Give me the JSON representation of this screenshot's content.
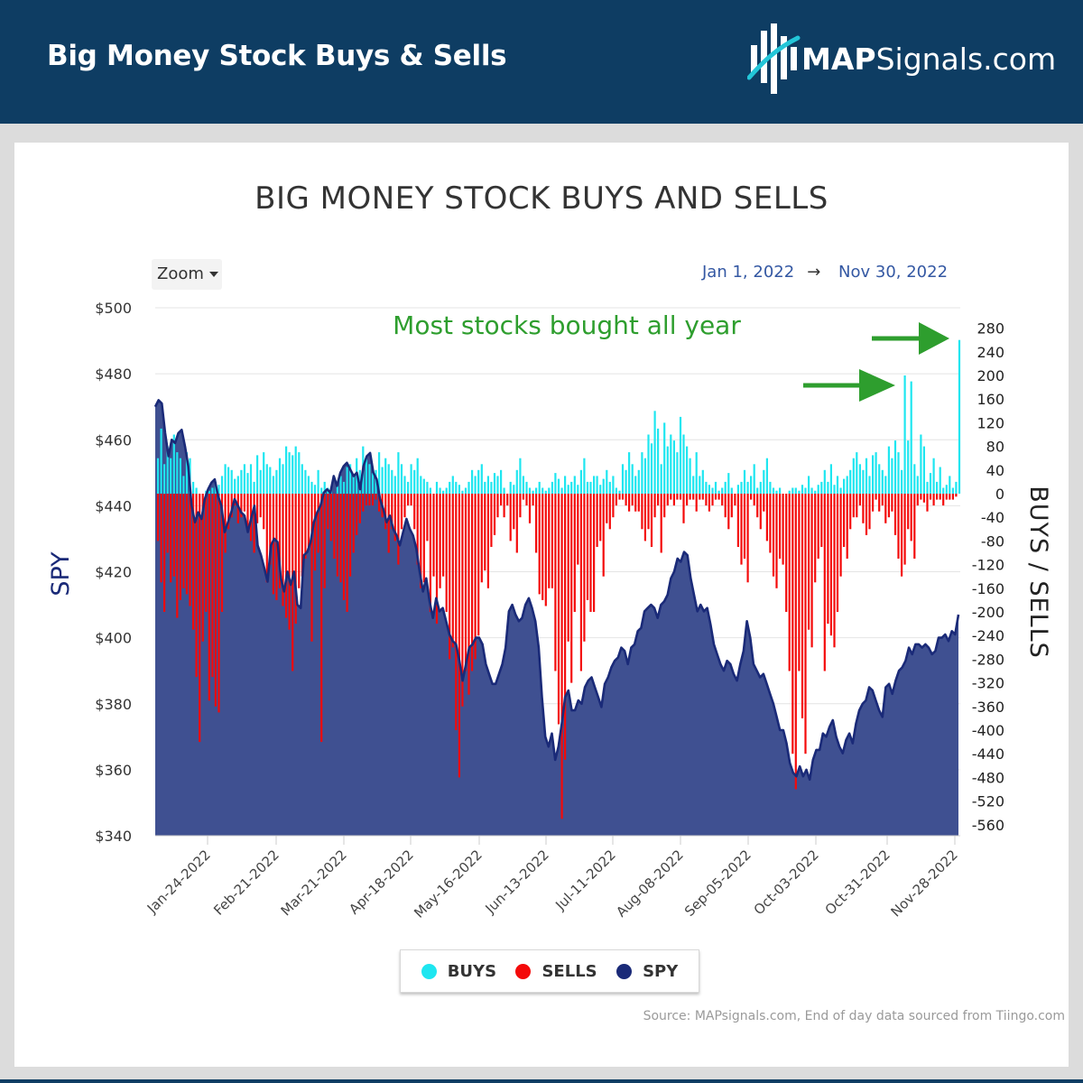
{
  "header": {
    "title": "Big Money Stock Buys & Sells",
    "logo_bold": "MAP",
    "logo_rest": "Signals.com"
  },
  "toolbar": {
    "zoom_label": "Zoom",
    "range_start": "Jan 1, 2022",
    "range_arrow": "→",
    "range_end": "Nov 30, 2022"
  },
  "colors": {
    "header_bg": "#0e3d63",
    "buys": "#1ee6f0",
    "sells": "#f40a0a",
    "spy": "#1a2a78",
    "spy_fill": "#3f5091",
    "annotation": "#2e9e2e"
  },
  "legend": {
    "buys": "BUYS",
    "sells": "SELLS",
    "spy": "SPY"
  },
  "source": "Source: MAPsignals.com, End of day data sourced from Tiingo.com",
  "chart_data": {
    "type": "bar",
    "title": "BIG MONEY STOCK BUYS AND SELLS",
    "annotation": "Most stocks bought all year",
    "y_left": {
      "label": "SPY",
      "range": [
        340,
        500
      ],
      "ticks": [
        "$340",
        "$360",
        "$380",
        "$400",
        "$420",
        "$440",
        "$460",
        "$480",
        "$500"
      ]
    },
    "y_right": {
      "label": "BUYS / SELLS",
      "range": [
        -580,
        290
      ],
      "ticks": [
        "-560",
        "-520",
        "-480",
        "-440",
        "-400",
        "-360",
        "-320",
        "-280",
        "-240",
        "-200",
        "-160",
        "-120",
        "-80",
        "-40",
        "0",
        "40",
        "80",
        "120",
        "160",
        "200",
        "240",
        "280"
      ]
    },
    "x_ticks": [
      "Jan-24-2022",
      "Feb-21-2022",
      "Mar-21-2022",
      "Apr-18-2022",
      "May-16-2022",
      "Jun-13-2022",
      "Jul-11-2022",
      "Aug-08-2022",
      "Sep-05-2022",
      "Oct-03-2022",
      "Oct-31-2022",
      "Nov-28-2022"
    ],
    "x_range": [
      "Jan-03-2022",
      "Nov-30-2022"
    ],
    "grid": true,
    "legend_position": "bottom-center",
    "series": [
      {
        "name": "BUYS",
        "type": "bar",
        "values": [
          60,
          110,
          50,
          80,
          60,
          100,
          70,
          60,
          30,
          70,
          60,
          20,
          10,
          0,
          0,
          5,
          5,
          10,
          20,
          15,
          30,
          50,
          45,
          40,
          25,
          30,
          40,
          50,
          35,
          50,
          20,
          65,
          40,
          70,
          50,
          45,
          30,
          40,
          60,
          50,
          80,
          70,
          65,
          80,
          70,
          50,
          40,
          30,
          20,
          15,
          40,
          10,
          20,
          10,
          5,
          0,
          20,
          30,
          20,
          45,
          50,
          30,
          60,
          40,
          80,
          60,
          50,
          35,
          40,
          70,
          45,
          60,
          50,
          40,
          30,
          70,
          50,
          30,
          20,
          50,
          40,
          60,
          30,
          25,
          20,
          10,
          0,
          20,
          10,
          5,
          10,
          20,
          30,
          20,
          15,
          5,
          10,
          20,
          40,
          30,
          40,
          50,
          20,
          30,
          20,
          35,
          30,
          40,
          10,
          0,
          20,
          15,
          40,
          60,
          30,
          20,
          10,
          5,
          10,
          20,
          10,
          5,
          10,
          20,
          35,
          25,
          10,
          30,
          15,
          20,
          30,
          15,
          40,
          60,
          20,
          20,
          30,
          30,
          15,
          25,
          40,
          20,
          30,
          10,
          5,
          50,
          40,
          70,
          50,
          30,
          40,
          70,
          60,
          100,
          85,
          140,
          110,
          50,
          120,
          80,
          100,
          90,
          70,
          130,
          100,
          80,
          60,
          30,
          70,
          30,
          40,
          20,
          15,
          10,
          20,
          5,
          10,
          20,
          35,
          10,
          0,
          15,
          20,
          40,
          20,
          30,
          50,
          10,
          20,
          40,
          60,
          20,
          10,
          5,
          10,
          0,
          0,
          5,
          10,
          10,
          5,
          15,
          10,
          30,
          10,
          5,
          15,
          20,
          40,
          20,
          50,
          15,
          30,
          10,
          25,
          30,
          40,
          60,
          70,
          50,
          40,
          60,
          30,
          65,
          70,
          50,
          40,
          30,
          80,
          60,
          90,
          70,
          40,
          200,
          90,
          190,
          50,
          30,
          100,
          80,
          20,
          35,
          60,
          20,
          45,
          10,
          15,
          30,
          10,
          20,
          260
        ],
        "representative_max": 255
      },
      {
        "name": "SELLS",
        "type": "bar",
        "values": [
          -80,
          -150,
          -200,
          -100,
          -150,
          -140,
          -210,
          -180,
          -160,
          -170,
          -190,
          -230,
          -310,
          -420,
          -250,
          -200,
          -350,
          -310,
          -360,
          -370,
          -200,
          -100,
          -60,
          -40,
          -20,
          -50,
          -40,
          -30,
          -60,
          -80,
          -100,
          -50,
          -40,
          -60,
          -150,
          -120,
          -170,
          -180,
          -160,
          -190,
          -210,
          -230,
          -300,
          -220,
          -160,
          -140,
          -110,
          -90,
          -250,
          -130,
          -100,
          -420,
          -160,
          -60,
          -80,
          -110,
          -140,
          -150,
          -180,
          -200,
          -140,
          -100,
          -70,
          -50,
          -30,
          -20,
          -20,
          -20,
          -10,
          -30,
          -40,
          -60,
          -100,
          -60,
          -80,
          -120,
          -60,
          -40,
          -20,
          -20,
          -60,
          -120,
          -160,
          -150,
          -80,
          -200,
          -140,
          -220,
          -160,
          -140,
          -200,
          -280,
          -260,
          -400,
          -480,
          -360,
          -300,
          -340,
          -300,
          -280,
          -240,
          -150,
          -130,
          -160,
          -90,
          -70,
          -40,
          -20,
          -40,
          -20,
          -80,
          -60,
          -100,
          -40,
          -10,
          -20,
          -50,
          -20,
          -100,
          -170,
          -180,
          -190,
          -160,
          -160,
          -300,
          -390,
          -550,
          -450,
          -250,
          -320,
          -200,
          -120,
          -300,
          -250,
          -180,
          -200,
          -200,
          -90,
          -80,
          -140,
          -50,
          -60,
          -40,
          -20,
          -10,
          -10,
          -20,
          -30,
          -20,
          -30,
          -30,
          -60,
          -80,
          -60,
          -90,
          -40,
          -20,
          -100,
          -40,
          -20,
          -10,
          -20,
          -10,
          -10,
          -50,
          -20,
          -10,
          -10,
          -30,
          -10,
          -10,
          -20,
          -30,
          -20,
          -10,
          -10,
          -20,
          -40,
          -60,
          -40,
          -20,
          -90,
          -120,
          -110,
          -150,
          -10,
          -20,
          -40,
          -60,
          -30,
          -80,
          -100,
          -140,
          -160,
          -110,
          -120,
          -200,
          -300,
          -440,
          -500,
          -300,
          -380,
          -440,
          -230,
          -260,
          -150,
          -110,
          -90,
          -300,
          -220,
          -240,
          -260,
          -200,
          -140,
          -90,
          -110,
          -60,
          -40,
          -40,
          -20,
          -50,
          -70,
          -60,
          -30,
          -10,
          -30,
          -20,
          -50,
          -40,
          -30,
          -70,
          -110,
          -140,
          -120,
          -60,
          -80,
          -110,
          -20,
          -10,
          -15,
          -30,
          -10,
          -20,
          -10,
          -10,
          -20,
          -10,
          -10,
          -10,
          -5
        ],
        "representative_min": -560
      },
      {
        "name": "SPY",
        "type": "area",
        "values": [
          470,
          472,
          471,
          462,
          455,
          460,
          459,
          462,
          463,
          458,
          452,
          440,
          435,
          438,
          436,
          442,
          445,
          447,
          448,
          443,
          440,
          432,
          435,
          438,
          442,
          440,
          438,
          437,
          432,
          436,
          440,
          428,
          425,
          421,
          417,
          428,
          430,
          429,
          418,
          414,
          420,
          416,
          420,
          410,
          409,
          425,
          426,
          429,
          435,
          438,
          440,
          444,
          445,
          444,
          449,
          446,
          450,
          452,
          453,
          451,
          449,
          450,
          445,
          452,
          455,
          456,
          450,
          448,
          442,
          439,
          435,
          437,
          433,
          431,
          428,
          432,
          436,
          433,
          431,
          427,
          420,
          414,
          418,
          411,
          406,
          412,
          408,
          409,
          405,
          401,
          399,
          398,
          393,
          387,
          392,
          397,
          398,
          400,
          400,
          398,
          392,
          389,
          386,
          386,
          389,
          392,
          397,
          408,
          410,
          407,
          405,
          406,
          410,
          412,
          409,
          405,
          397,
          382,
          370,
          367,
          371,
          363,
          367,
          374,
          382,
          384,
          378,
          378,
          381,
          380,
          385,
          387,
          388,
          385,
          382,
          379,
          386,
          388,
          391,
          393,
          394,
          397,
          396,
          392,
          397,
          398,
          402,
          403,
          408,
          409,
          410,
          409,
          406,
          410,
          411,
          413,
          418,
          420,
          424,
          423,
          426,
          425,
          418,
          413,
          408,
          410,
          408,
          409,
          404,
          398,
          395,
          392,
          390,
          393,
          392,
          389,
          387,
          392,
          396,
          405,
          400,
          392,
          390,
          388,
          389,
          386,
          383,
          380,
          376,
          372,
          372,
          368,
          362,
          359,
          358,
          361,
          358,
          360,
          357,
          363,
          366,
          366,
          371,
          370,
          373,
          375,
          370,
          367,
          365,
          369,
          371,
          368,
          374,
          378,
          380,
          381,
          385,
          384,
          381,
          378,
          376,
          385,
          386,
          383,
          387,
          390,
          391,
          393,
          397,
          395,
          398,
          398,
          397,
          398,
          397,
          395,
          396,
          400,
          400,
          401,
          399,
          402,
          401,
          407
        ]
      }
    ]
  }
}
